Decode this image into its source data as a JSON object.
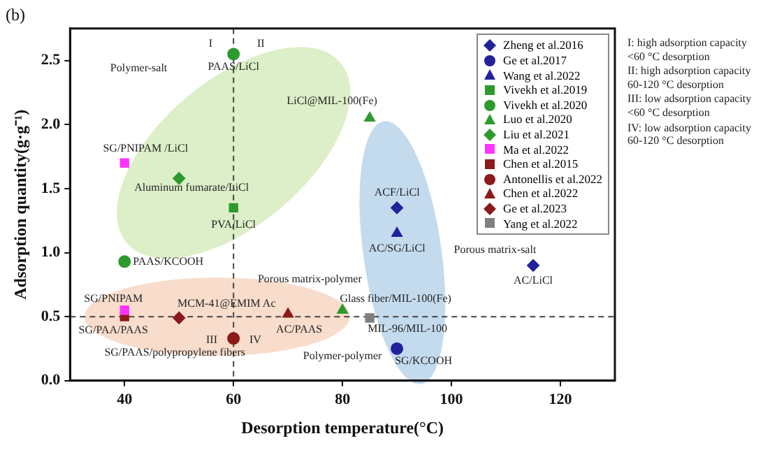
{
  "chart_data": {
    "type": "scatter",
    "title": "(b)",
    "xlabel": "Desorption temperature(°C)",
    "ylabel": "Adsorption quantity(g·g⁻¹)",
    "xlim": [
      30,
      130
    ],
    "xticks": [
      40,
      60,
      80,
      100,
      120
    ],
    "ylim": [
      0,
      2.75
    ],
    "yticks": [
      {
        "value": 0,
        "label": "0.0"
      },
      {
        "value": 0.5,
        "label": "0.5"
      },
      {
        "value": 1,
        "label": "1.0"
      },
      {
        "value": 1.5,
        "label": "1.5"
      },
      {
        "value": 2,
        "label": "2.0"
      },
      {
        "value": 2.5,
        "label": "2.5"
      }
    ],
    "grid": false,
    "legend": "top right",
    "series": [
      {
        "name": "Zheng et al.2016",
        "color": "#22229c",
        "marker": "diamond",
        "x": [
          90,
          115
        ],
        "values": [
          1.35,
          0.9
        ]
      },
      {
        "name": "Ge et al.2017",
        "color": "#22229c",
        "marker": "circle",
        "x": [
          90
        ],
        "values": [
          0.25
        ]
      },
      {
        "name": "Wang et al.2022",
        "color": "#22229c",
        "marker": "triangle",
        "x": [
          90
        ],
        "values": [
          1.15
        ]
      },
      {
        "name": "Vivekh et al.2019",
        "color": "#2e9a2e",
        "marker": "square",
        "x": [
          60
        ],
        "values": [
          1.35
        ]
      },
      {
        "name": "Vivekh et al.2020",
        "color": "#2e9a2e",
        "marker": "circle",
        "x": [
          40,
          60
        ],
        "values": [
          0.93,
          2.55
        ]
      },
      {
        "name": "Luo et al.2020",
        "color": "#2e9a2e",
        "marker": "triangle",
        "x": [
          85,
          80
        ],
        "values": [
          2.05,
          0.55
        ]
      },
      {
        "name": "Liu et al.2021",
        "color": "#2e9a2e",
        "marker": "diamond",
        "x": [
          50
        ],
        "values": [
          1.58
        ]
      },
      {
        "name": "Ma et al.2022",
        "color": "#ff33ff",
        "marker": "square",
        "x": [
          40,
          40
        ],
        "values": [
          1.7,
          0.55
        ]
      },
      {
        "name": "Chen et al.2015",
        "color": "#8b1a1a",
        "marker": "square",
        "x": [
          40
        ],
        "values": [
          0.5
        ]
      },
      {
        "name": "Antonellis et al.2022",
        "color": "#8b1a1a",
        "marker": "circle",
        "x": [
          60
        ],
        "values": [
          0.33
        ]
      },
      {
        "name": "Chen et al.2022",
        "color": "#8b1a1a",
        "marker": "triangle",
        "x": [
          70
        ],
        "values": [
          0.52
        ]
      },
      {
        "name": "Ge et al.2023",
        "color": "#8b1a1a",
        "marker": "diamond",
        "x": [
          50
        ],
        "values": [
          0.49
        ]
      },
      {
        "name": "Yang et al.2022",
        "color": "#808080",
        "marker": "square",
        "x": [
          85
        ],
        "values": [
          0.49
        ]
      }
    ],
    "ref_lines": [
      {
        "axis": "x",
        "value": 60,
        "line_style": "dashed",
        "color": "#444444"
      },
      {
        "axis": "y",
        "value": 0.5,
        "line_style": "dashed",
        "color": "#444444"
      }
    ],
    "annotations": [
      {
        "text": "PAAS/LiCl",
        "x": 60,
        "y": 2.55
      },
      {
        "text": "LiCl@MIL-100(Fe)",
        "x": 85,
        "y": 2.05
      },
      {
        "text": "SG/PNIPAM /LiCl",
        "x": 40,
        "y": 1.7
      },
      {
        "text": "Aluminum fumarate/LiCl",
        "x": 50,
        "y": 1.58
      },
      {
        "text": "PVA/LiCl",
        "x": 60,
        "y": 1.35
      },
      {
        "text": "PAAS/KCOOH",
        "x": 40,
        "y": 0.93
      },
      {
        "text": "SG/PNIPAM",
        "x": 40,
        "y": 0.55
      },
      {
        "text": "MCM-41@EMIM Ac",
        "x": 50,
        "y": 0.49
      },
      {
        "text": "SG/PAA/PAAS",
        "x": 40,
        "y": 0.5
      },
      {
        "text": "AC/PAAS",
        "x": 70,
        "y": 0.52
      },
      {
        "text": "SG/PAAS/polypropylene fibers",
        "x": 60,
        "y": 0.33
      },
      {
        "text": "Glass fiber/MIL-100(Fe)",
        "x": 80,
        "y": 0.55
      },
      {
        "text": "MIL-96/MIL-100",
        "x": 85,
        "y": 0.49
      },
      {
        "text": "SG/KCOOH",
        "x": 90,
        "y": 0.25
      },
      {
        "text": "ACF/LiCl",
        "x": 90,
        "y": 1.35
      },
      {
        "text": "AC/SG/LiCl",
        "x": 90,
        "y": 1.15
      },
      {
        "text": "AC/LiCl",
        "x": 115,
        "y": 0.9
      },
      "Polymer-salt",
      "Porous matrix-polymer",
      "Porous matrix-salt",
      "Polymer-polymer",
      "I",
      "II",
      "III",
      "IV",
      "I:  high adsorption capacity\n<60 °C desorption",
      "II:  high adsorption capacity\n60-120 °C desorption",
      "III:  low adsorption capacity\n<60 °C desorption",
      "IV: low adsorption capacity\n60-120 °C desorption"
    ]
  }
}
